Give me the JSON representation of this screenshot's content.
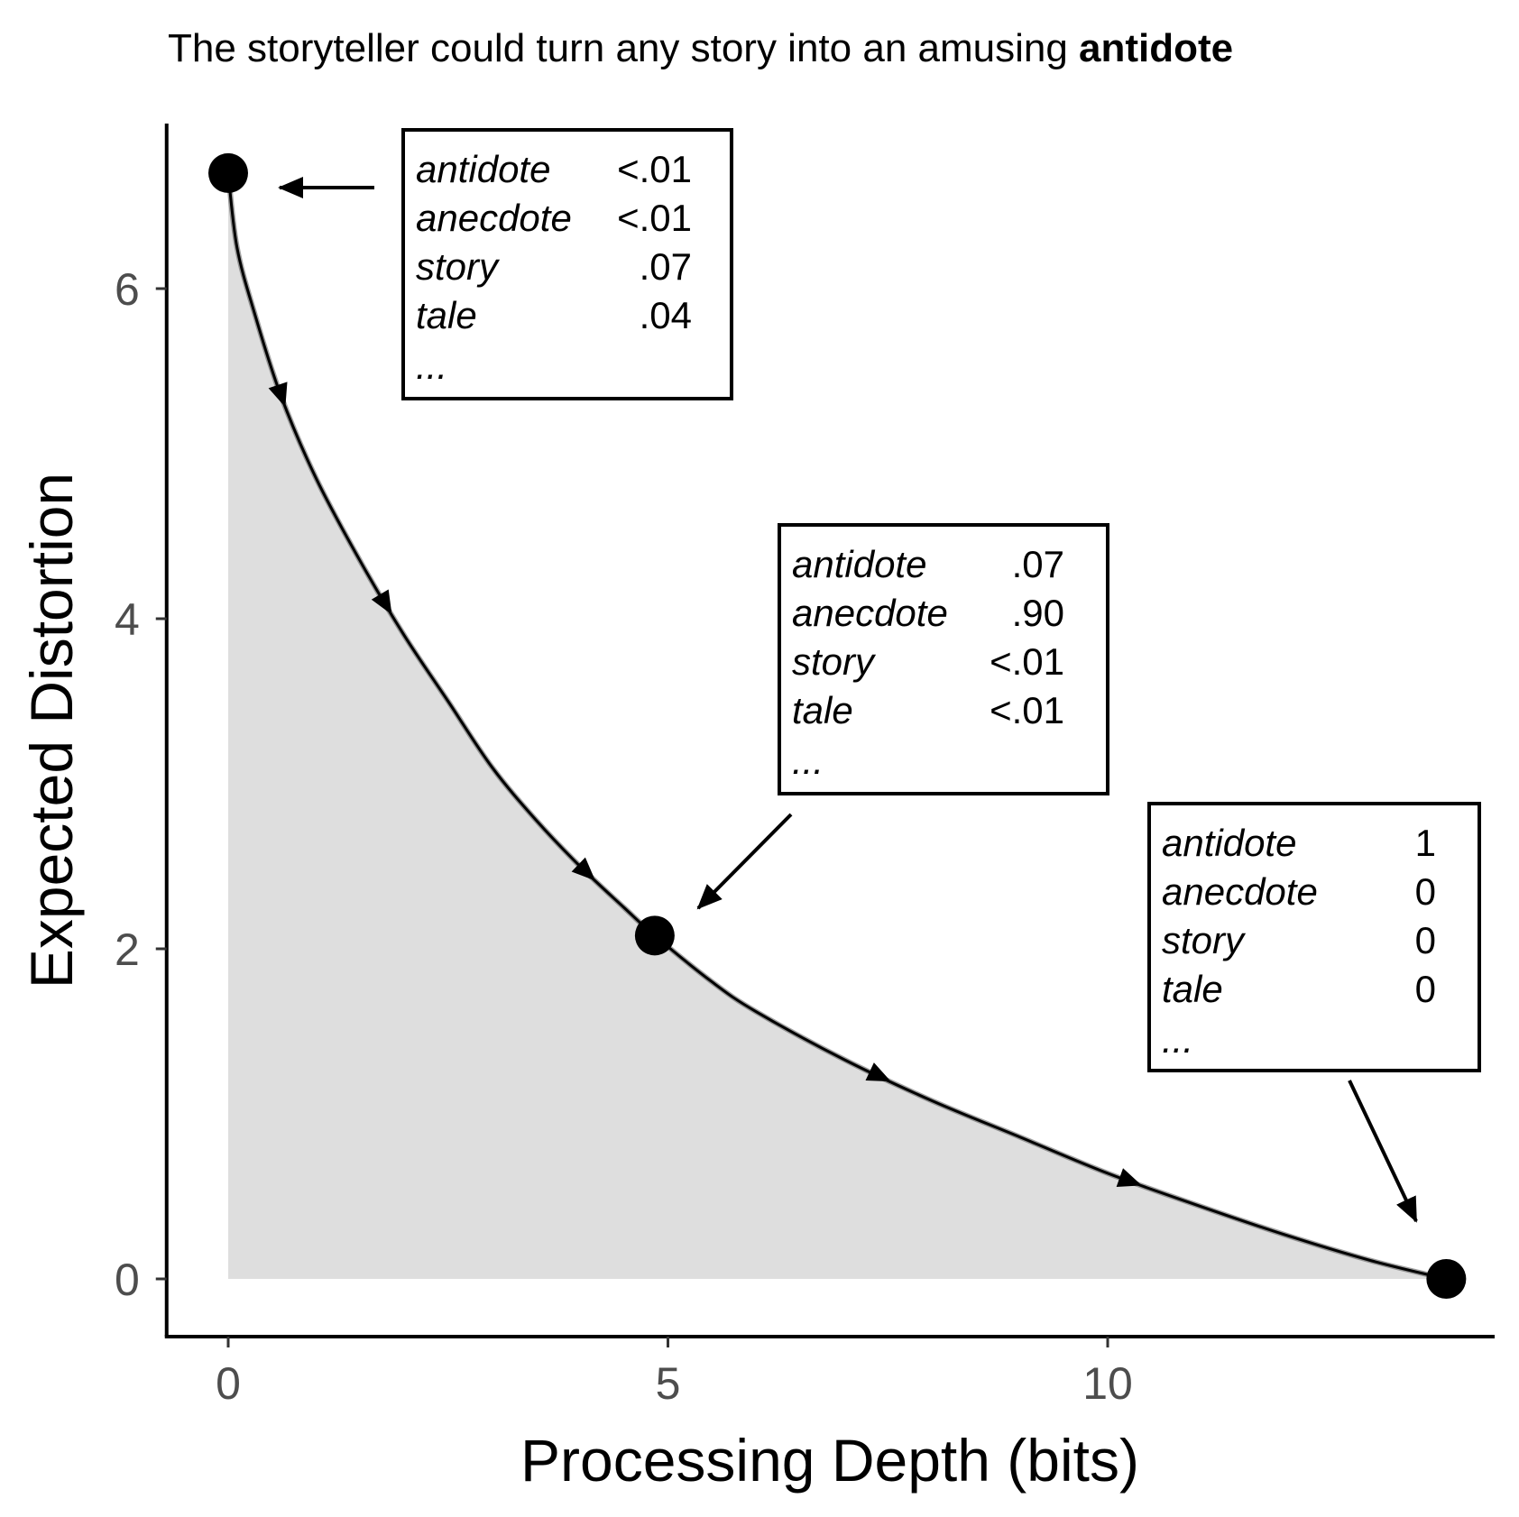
{
  "chart_data": {
    "type": "area",
    "title": {
      "prefix": "The storyteller could turn any story into an amusing ",
      "bold": "antidote"
    },
    "xlabel": "Processing Depth (bits)",
    "ylabel": "Expected Distortion",
    "xlim": [
      -0.7,
      14.4
    ],
    "ylim": [
      -0.35,
      7.0
    ],
    "xticks": [
      0,
      5,
      10
    ],
    "yticks": [
      0,
      2,
      4,
      6
    ],
    "grid": false,
    "curve": {
      "x": [
        0,
        0.1,
        0.3,
        0.6,
        1.0,
        1.5,
        2.0,
        2.5,
        3.0,
        3.5,
        4.0,
        4.5,
        4.85,
        5.5,
        6.0,
        7.0,
        8.0,
        9.0,
        10.0,
        11.0,
        12.0,
        13.0,
        13.85
      ],
      "y": [
        6.7,
        6.25,
        5.85,
        5.35,
        4.85,
        4.35,
        3.9,
        3.5,
        3.1,
        2.78,
        2.5,
        2.25,
        2.08,
        1.8,
        1.62,
        1.33,
        1.08,
        0.86,
        0.64,
        0.45,
        0.27,
        0.11,
        0.0
      ]
    },
    "arrow_points_x": [
      0.55,
      1.75,
      4.05,
      7.4,
      10.25
    ],
    "points": [
      {
        "x": 0,
        "y": 6.7
      },
      {
        "x": 4.85,
        "y": 2.08
      },
      {
        "x": 13.85,
        "y": 0.0
      }
    ],
    "annotations": [
      {
        "target": 0,
        "rows": [
          {
            "word": "antidote",
            "value": "<.01"
          },
          {
            "word": "anecdote",
            "value": "<.01"
          },
          {
            "word": "story",
            "value": ".07"
          },
          {
            "word": "tale",
            "value": ".04"
          }
        ],
        "ellipsis": "..."
      },
      {
        "target": 1,
        "rows": [
          {
            "word": "antidote",
            "value": ".07"
          },
          {
            "word": "anecdote",
            "value": ".90"
          },
          {
            "word": "story",
            "value": "<.01"
          },
          {
            "word": "tale",
            "value": "<.01"
          }
        ],
        "ellipsis": "..."
      },
      {
        "target": 2,
        "rows": [
          {
            "word": "antidote",
            "value": "1"
          },
          {
            "word": "anecdote",
            "value": "0"
          },
          {
            "word": "story",
            "value": "0"
          },
          {
            "word": "tale",
            "value": "0"
          }
        ],
        "ellipsis": "..."
      }
    ]
  }
}
